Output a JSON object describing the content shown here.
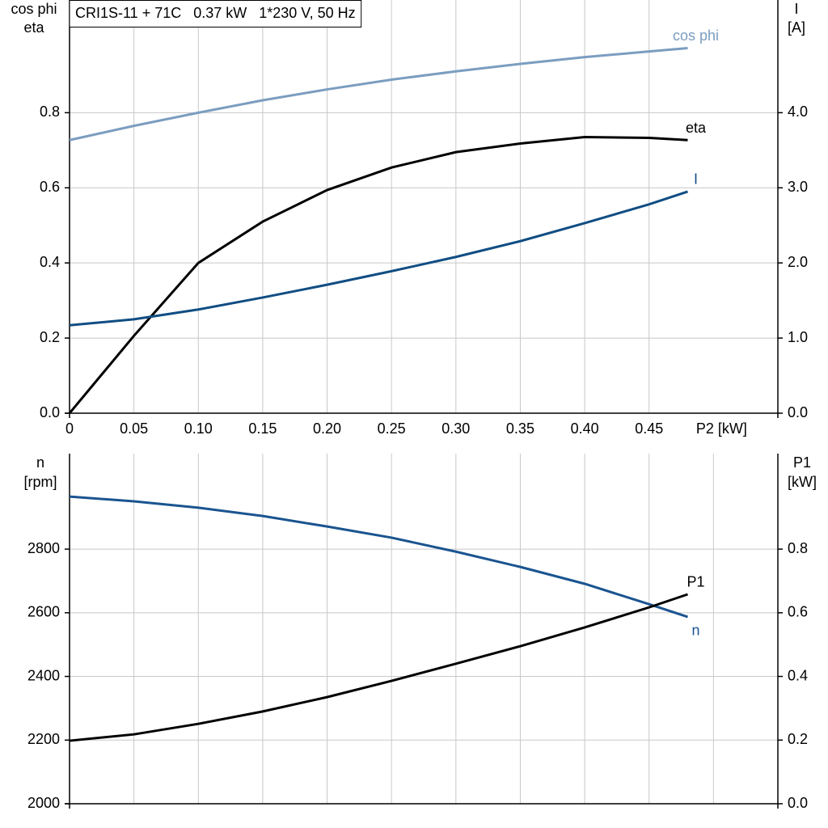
{
  "chart_data": [
    {
      "type": "line",
      "title": "CRI1S-11 + 71C   0.37 kW   1*230 V, 50 Hz",
      "ylabel": [
        "cos phi",
        "eta"
      ],
      "y2label": [
        "I",
        "[A]"
      ],
      "xlabel": "P2 [kW]",
      "x": [
        0,
        0.05,
        0.1,
        0.15,
        0.2,
        0.25,
        0.3,
        0.35,
        0.4,
        0.45,
        0.48
      ],
      "xlim": [
        0,
        0.55
      ],
      "xticks": [
        0,
        0.05,
        {
          "value": 0.1,
          "label": "0.10"
        },
        0.15,
        {
          "value": 0.2,
          "label": "0.20"
        },
        0.25,
        {
          "value": 0.3,
          "label": "0.30"
        },
        0.35,
        {
          "value": 0.4,
          "label": "0.40"
        },
        0.45
      ],
      "ylim": [
        0,
        1.1
      ],
      "yticks": [
        {
          "value": 0,
          "label": "0.0"
        },
        0.2,
        0.4,
        0.6,
        0.8
      ],
      "y2lim": [
        0,
        5.5
      ],
      "y2ticks": [
        {
          "value": 0,
          "label": "0.0"
        },
        {
          "value": 1,
          "label": "1.0"
        },
        {
          "value": 2,
          "label": "2.0"
        },
        {
          "value": 3,
          "label": "3.0"
        },
        {
          "value": 4,
          "label": "4.0"
        }
      ],
      "grid": true,
      "series": [
        {
          "name": "cos phi",
          "color": "#7b9dc0",
          "values": [
            0.727,
            0.765,
            0.8,
            0.833,
            0.862,
            0.888,
            0.91,
            0.93,
            0.948,
            0.963,
            0.972
          ]
        },
        {
          "name": "eta",
          "color": "#000000",
          "values": [
            0,
            0.206,
            0.4,
            0.51,
            0.594,
            0.654,
            0.695,
            0.718,
            0.735,
            0.733,
            0.727
          ]
        },
        {
          "name": "I",
          "color": "#104d83",
          "axis": "y2",
          "values": [
            1.17,
            1.25,
            1.38,
            1.54,
            1.71,
            1.89,
            2.08,
            2.29,
            2.53,
            2.78,
            2.95
          ]
        }
      ]
    },
    {
      "type": "line",
      "ylabel": [
        "n",
        "[rpm]"
      ],
      "y2label": [
        "P1",
        "[kW]"
      ],
      "x": [
        0,
        0.05,
        0.1,
        0.15,
        0.2,
        0.25,
        0.3,
        0.35,
        0.4,
        0.45,
        0.48
      ],
      "xlim": [
        0,
        0.55
      ],
      "xticks": [
        0,
        0.05,
        0.1,
        0.15,
        0.2,
        0.25,
        0.3,
        0.35,
        0.4,
        0.45,
        0.5
      ],
      "ylim": [
        2000,
        3100
      ],
      "yticks": [
        2000,
        2200,
        2400,
        2600,
        2800
      ],
      "y2lim": [
        0,
        1.1
      ],
      "y2ticks": [
        {
          "value": 0,
          "label": "0.0"
        },
        0.2,
        0.4,
        0.6,
        0.8
      ],
      "grid": true,
      "series": [
        {
          "name": "n",
          "color": "#1a5490",
          "values": [
            2965,
            2950,
            2930,
            2904,
            2871,
            2836,
            2792,
            2744,
            2691,
            2627,
            2587
          ]
        },
        {
          "name": "P1",
          "color": "#000000",
          "axis": "y2",
          "values": [
            0.198,
            0.218,
            0.251,
            0.29,
            0.335,
            0.386,
            0.44,
            0.495,
            0.554,
            0.617,
            0.658
          ]
        }
      ]
    }
  ]
}
